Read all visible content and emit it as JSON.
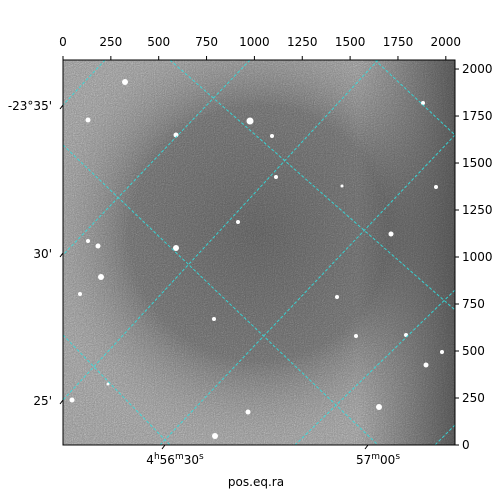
{
  "chart_data": {
    "type": "image",
    "x_label": "pos.eq.ra",
    "xlim": [
      0,
      2048
    ],
    "ylim": [
      0,
      2048
    ],
    "xticks": [
      0,
      250,
      500,
      750,
      1000,
      1250,
      1500,
      1750,
      2000
    ],
    "yticks": [
      0,
      250,
      500,
      750,
      1000,
      1250,
      1500,
      1750,
      2000
    ],
    "ra_ticks": [
      "4h56m30s",
      "57m00s"
    ],
    "dec_ticks": [
      "-23°35'",
      "30'",
      "25'"
    ],
    "grid_color": "#33dddd"
  }
}
